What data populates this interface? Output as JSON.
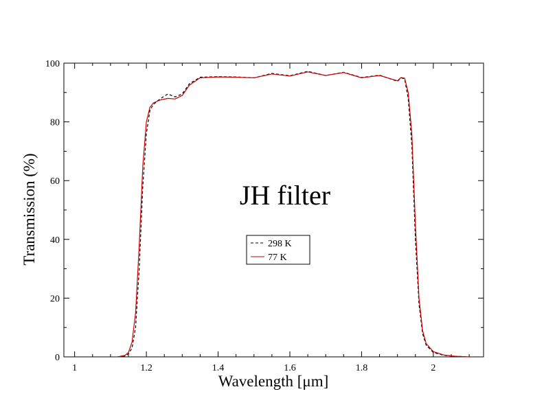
{
  "chart_data": {
    "type": "line",
    "title": "",
    "annotation": "JH filter",
    "xlabel": "Wavelength [μm]",
    "ylabel": "Transmission (%)",
    "xlim": [
      0.97,
      2.14
    ],
    "ylim": [
      0,
      100
    ],
    "x_ticks": [
      1,
      1.2,
      1.4,
      1.6,
      1.8,
      2
    ],
    "x_tick_labels": [
      "1",
      "1.2",
      "1.4",
      "1.6",
      "1.8",
      "2"
    ],
    "y_ticks": [
      0,
      20,
      40,
      60,
      80,
      100
    ],
    "y_tick_labels": [
      "0",
      "20",
      "40",
      "60",
      "80",
      "100"
    ],
    "x_minor_step": 0.05,
    "y_minor_step": 10,
    "grid": false,
    "legend_position": "center",
    "series": [
      {
        "name": "298 K",
        "color": "#000000",
        "style": "dashed",
        "x": [
          1.12,
          1.14,
          1.15,
          1.16,
          1.17,
          1.18,
          1.19,
          1.2,
          1.21,
          1.22,
          1.24,
          1.26,
          1.28,
          1.3,
          1.32,
          1.35,
          1.4,
          1.45,
          1.5,
          1.55,
          1.6,
          1.65,
          1.7,
          1.75,
          1.8,
          1.85,
          1.9,
          1.91,
          1.92,
          1.93,
          1.94,
          1.95,
          1.96,
          1.97,
          1.98,
          2.0,
          2.03,
          2.06,
          2.1
        ],
        "y": [
          0,
          0.3,
          1,
          3,
          10,
          30,
          58,
          76,
          84,
          86,
          88,
          89.5,
          88.5,
          89.5,
          93,
          95.2,
          95.4,
          95.3,
          95,
          96.5,
          95.7,
          97.2,
          95.8,
          96.9,
          95.1,
          95.9,
          93.8,
          95,
          94.6,
          88,
          72,
          40,
          18,
          8,
          4,
          1.5,
          0.5,
          0.2,
          0
        ]
      },
      {
        "name": "77 K",
        "color": "#cc0000",
        "style": "solid",
        "x": [
          1.12,
          1.14,
          1.15,
          1.16,
          1.17,
          1.18,
          1.19,
          1.2,
          1.21,
          1.22,
          1.24,
          1.26,
          1.28,
          1.3,
          1.32,
          1.35,
          1.4,
          1.45,
          1.5,
          1.55,
          1.6,
          1.65,
          1.7,
          1.75,
          1.8,
          1.85,
          1.9,
          1.91,
          1.92,
          1.93,
          1.94,
          1.95,
          1.96,
          1.97,
          1.98,
          2.0,
          2.03,
          2.06,
          2.1
        ],
        "y": [
          0,
          0.5,
          1.5,
          5,
          15,
          38,
          65,
          80,
          85,
          86.5,
          87.5,
          88,
          87.8,
          89,
          92.5,
          95,
          95.3,
          95.2,
          95,
          96.3,
          95.6,
          97,
          95.8,
          96.8,
          95,
          95.8,
          94,
          95.1,
          94.9,
          90,
          76,
          45,
          20,
          9,
          4.5,
          1.8,
          0.6,
          0.2,
          0
        ]
      }
    ]
  }
}
